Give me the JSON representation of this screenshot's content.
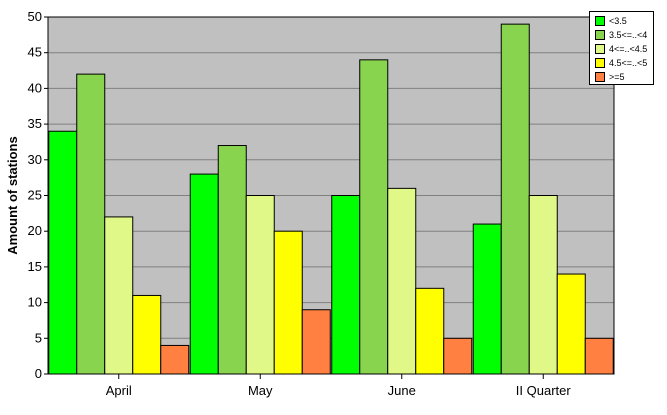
{
  "chart_data": {
    "type": "bar",
    "ylabel": "Amount of stations",
    "xlabel": "",
    "title": "",
    "categories": [
      "April",
      "May",
      "June",
      "II Quarter"
    ],
    "ylim": [
      0,
      50
    ],
    "yticks": [
      0,
      5,
      10,
      15,
      20,
      25,
      30,
      35,
      40,
      45,
      50
    ],
    "grid": true,
    "legend_position": "top-right",
    "plot_background": "#c0c0c0",
    "series": [
      {
        "name": "<3.5",
        "color": "#00ff00",
        "values": [
          34,
          28,
          25,
          21
        ]
      },
      {
        "name": "3.5<=..<4",
        "color": "#88d44f",
        "values": [
          42,
          32,
          44,
          49
        ]
      },
      {
        "name": "4<=..<4.5",
        "color": "#e0f888",
        "values": [
          22,
          25,
          26,
          25
        ]
      },
      {
        "name": "4.5<=..<5",
        "color": "#ffff00",
        "values": [
          11,
          20,
          12,
          14
        ]
      },
      {
        "name": ">=5",
        "color": "#ff8040",
        "values": [
          4,
          9,
          5,
          5
        ]
      }
    ]
  }
}
